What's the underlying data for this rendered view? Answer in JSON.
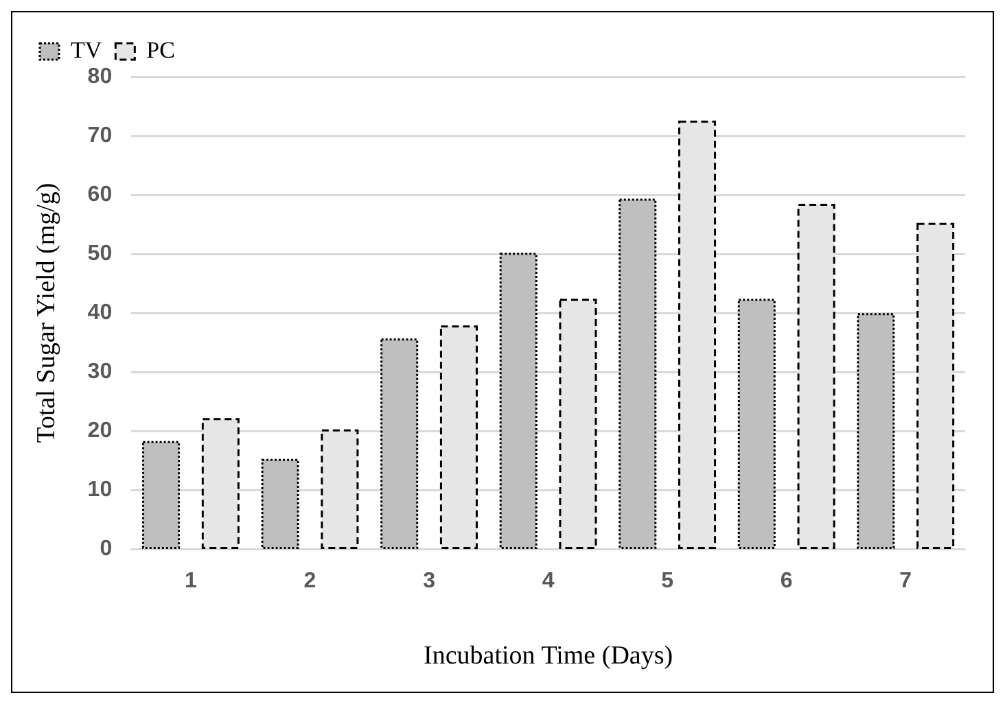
{
  "chart_data": {
    "type": "bar",
    "xlabel": "Incubation Time (Days)",
    "ylabel": "Total Sugar Yield (mg/g)",
    "categories": [
      "1",
      "2",
      "3",
      "4",
      "5",
      "6",
      "7"
    ],
    "series": [
      {
        "name": "TV",
        "color": "#bfbfbf",
        "line_style": "dotted",
        "values": [
          18.1,
          15.1,
          35.5,
          50.0,
          59.2,
          42.2,
          39.8
        ]
      },
      {
        "name": "PC",
        "color": "#e6e6e6",
        "line_style": "dashed",
        "values": [
          22.0,
          20.1,
          37.7,
          42.2,
          72.4,
          58.3,
          55.1
        ]
      }
    ],
    "ylim": [
      0,
      80
    ],
    "yticks": [
      0,
      10,
      20,
      30,
      40,
      50,
      60,
      70,
      80
    ],
    "grid": "y",
    "legend": "top left"
  }
}
